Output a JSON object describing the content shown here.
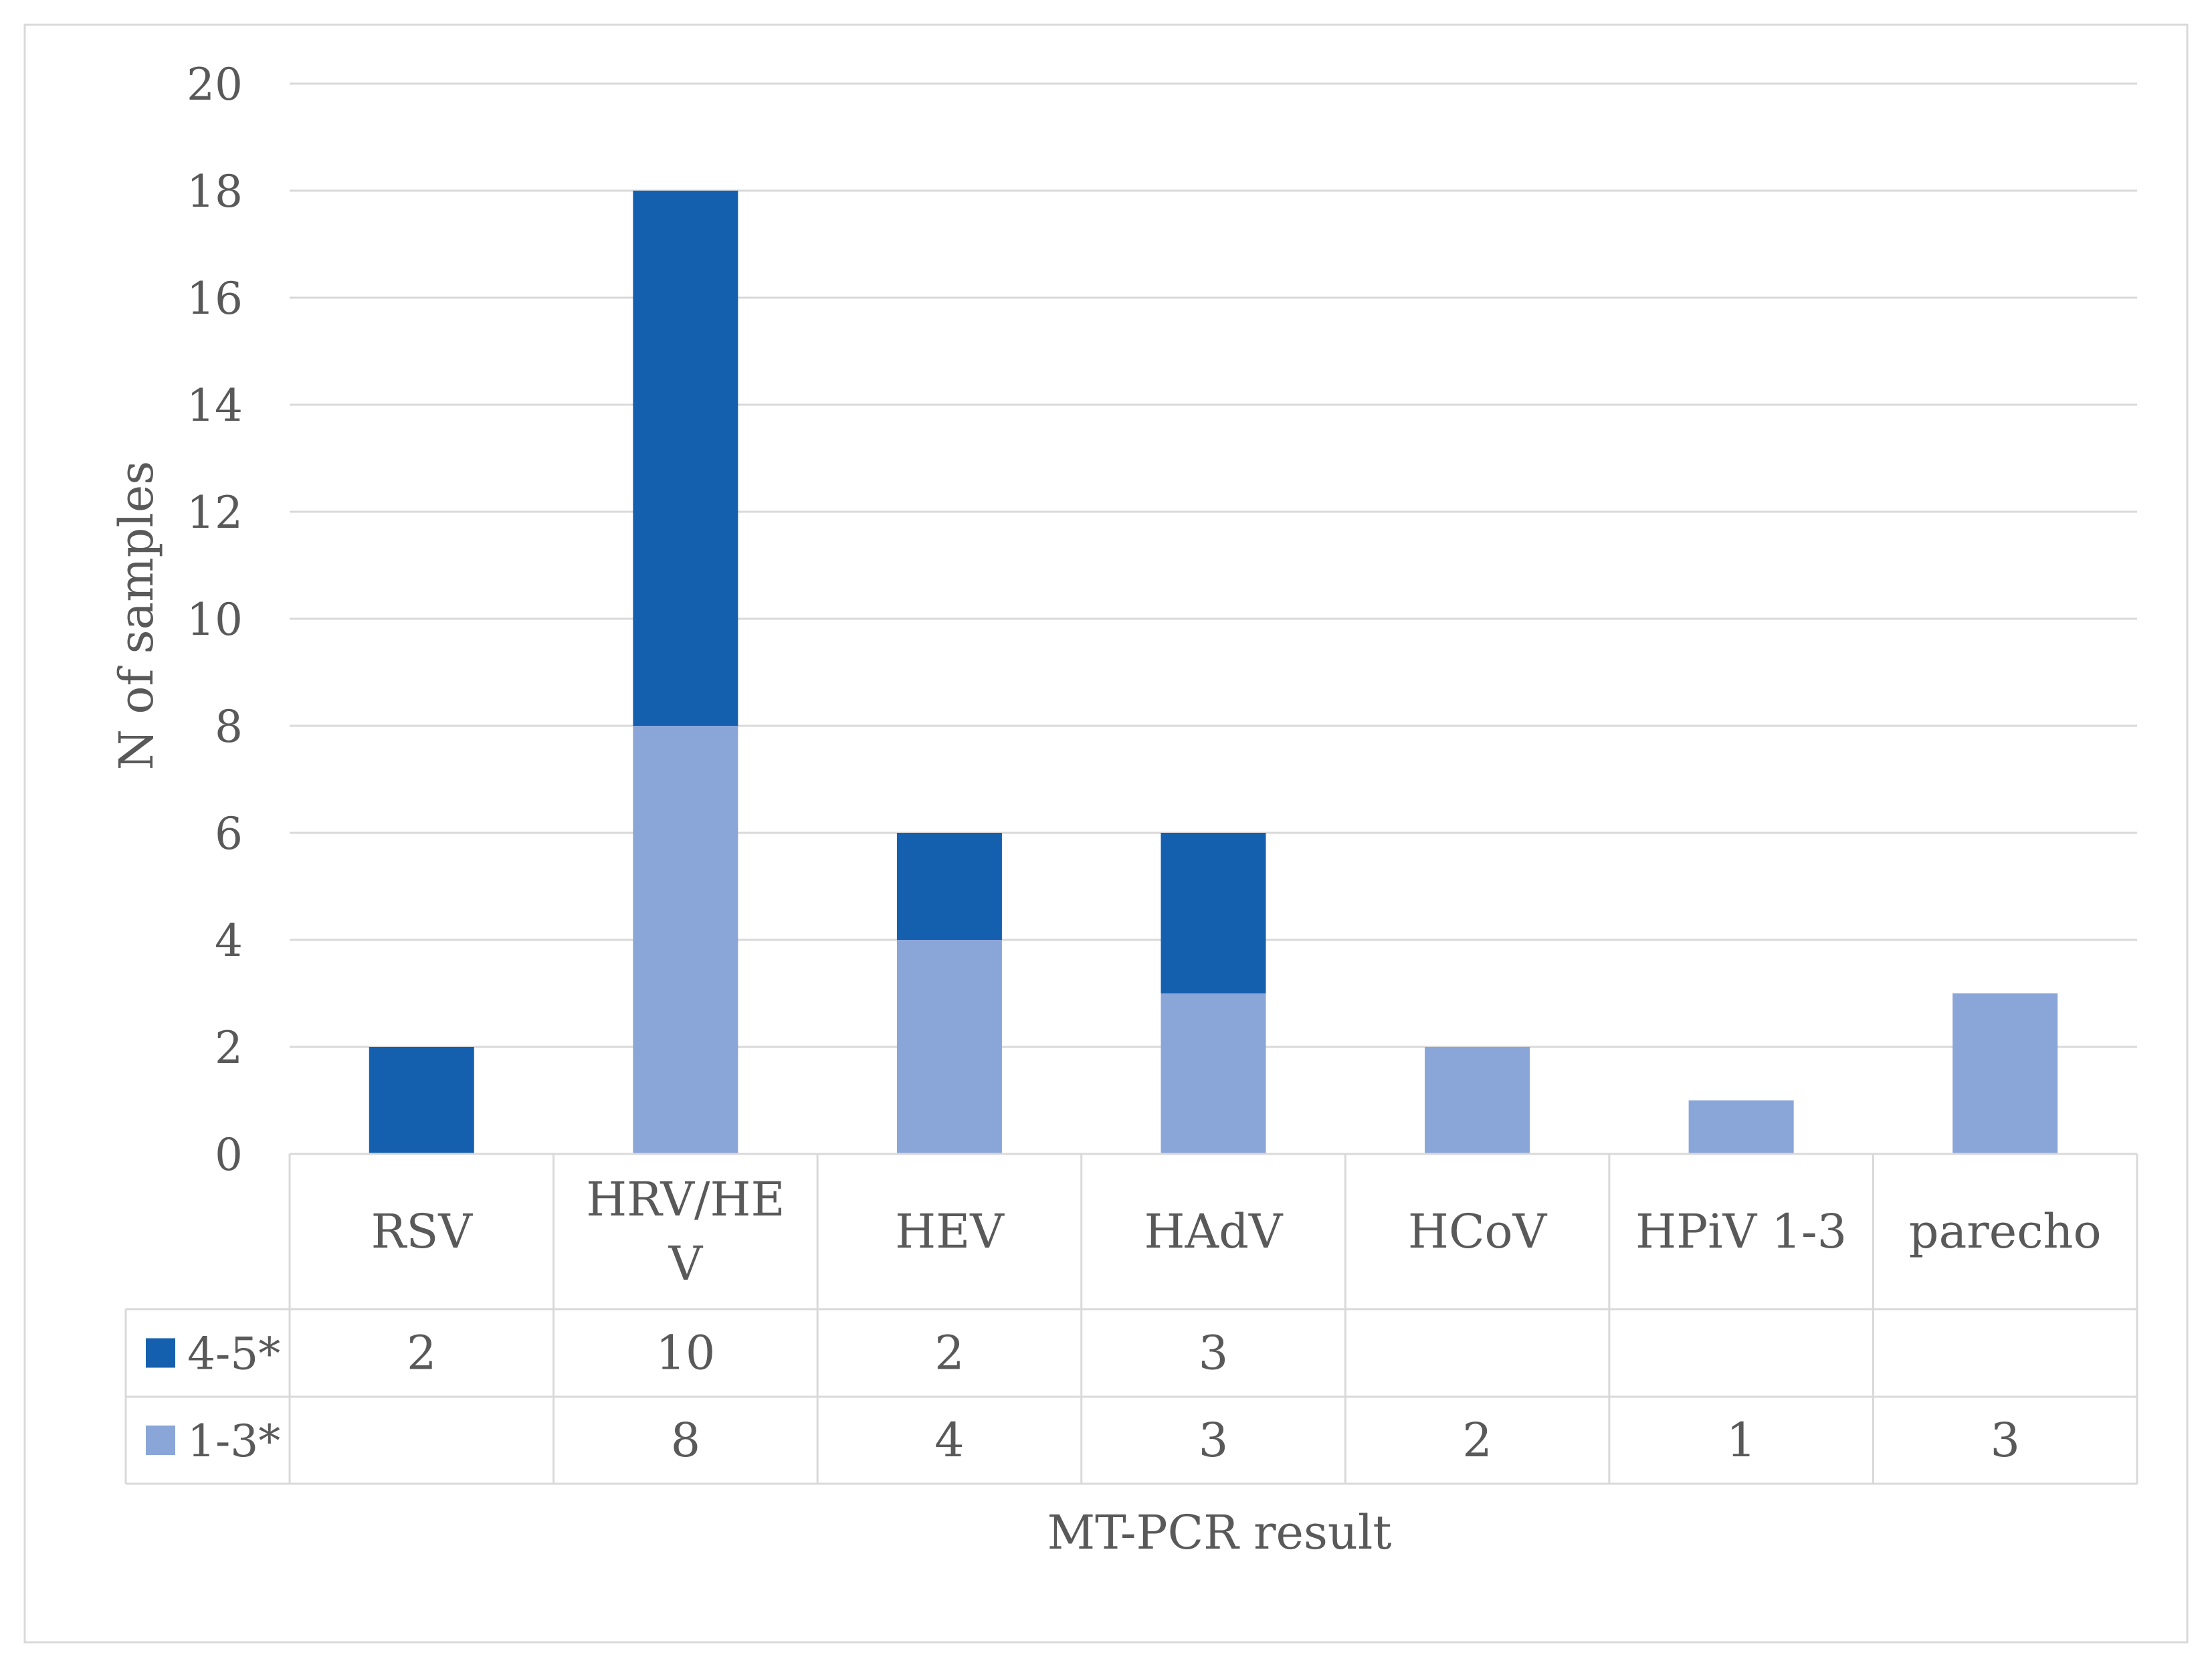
{
  "chart_data": {
    "type": "bar",
    "stacked": true,
    "title": "",
    "xlabel": "MT-PCR result",
    "ylabel": "N of samples",
    "ylim": [
      0,
      20
    ],
    "ytick_step": 2,
    "yticks": [
      "0",
      "2",
      "4",
      "6",
      "8",
      "10",
      "12",
      "14",
      "16",
      "18",
      "20"
    ],
    "categories": [
      "RSV",
      "HRV/HEV",
      "HEV",
      "HAdV",
      "HCoV",
      "HPiV 1-3",
      "parecho"
    ],
    "category_display": [
      [
        "RSV"
      ],
      [
        "HRV/HE",
        "V"
      ],
      [
        "HEV"
      ],
      [
        "HAdV"
      ],
      [
        "HCoV"
      ],
      [
        "HPiV 1-3"
      ],
      [
        "parecho"
      ]
    ],
    "series": [
      {
        "name": "1-3*",
        "color": "#8aa5d8",
        "values": [
          null,
          8,
          4,
          3,
          2,
          1,
          3
        ]
      },
      {
        "name": "4-5*",
        "color": "#1560ae",
        "values": [
          2,
          10,
          2,
          3,
          null,
          null,
          null
        ]
      }
    ],
    "data_table": {
      "row_order": [
        "4-5*",
        "1-3*"
      ]
    },
    "grid": true,
    "legend": "data-table-left"
  }
}
